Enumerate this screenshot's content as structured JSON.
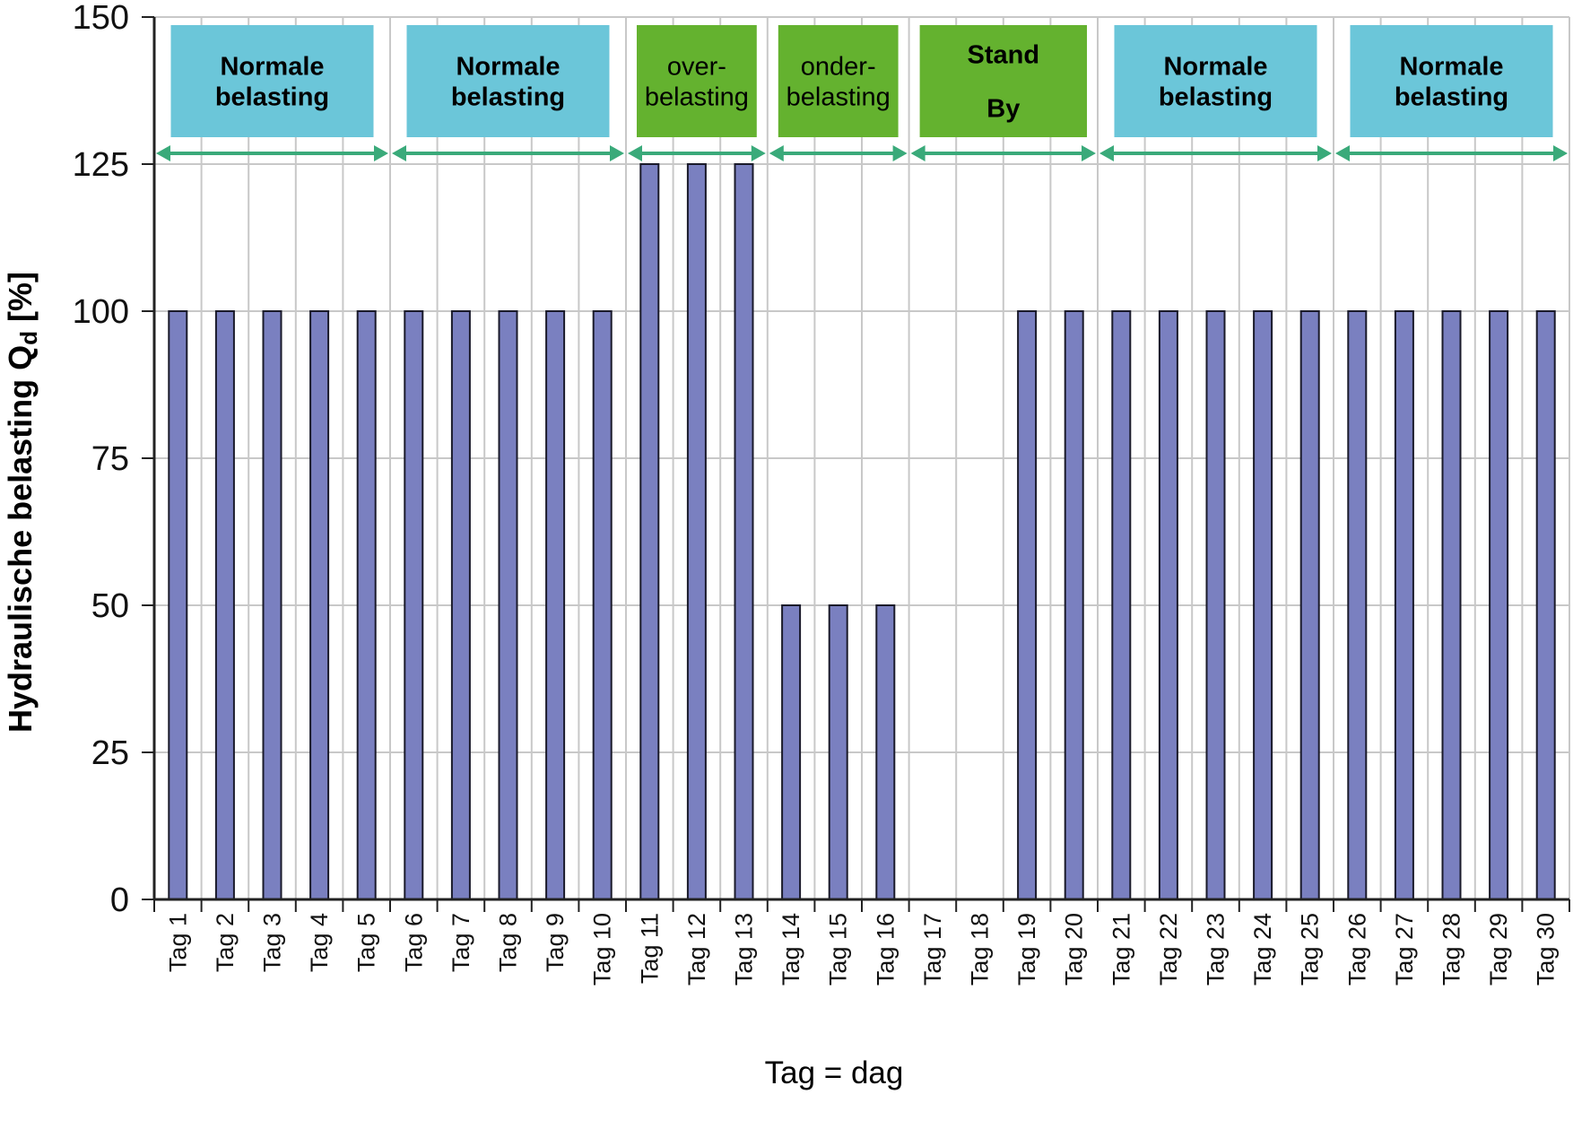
{
  "chart_data": {
    "type": "bar",
    "categories": [
      "Tag 1",
      "Tag 2",
      "Tag 3",
      "Tag 4",
      "Tag 5",
      "Tag 6",
      "Tag 7",
      "Tag 8",
      "Tag 9",
      "Tag 10",
      "Tag 11",
      "Tag 12",
      "Tag 13",
      "Tag 14",
      "Tag 15",
      "Tag 16",
      "Tag 17",
      "Tag 18",
      "Tag 19",
      "Tag 20",
      "Tag 21",
      "Tag 22",
      "Tag 23",
      "Tag 24",
      "Tag 25",
      "Tag 26",
      "Tag 27",
      "Tag 28",
      "Tag 29",
      "Tag 30"
    ],
    "values": [
      100,
      100,
      100,
      100,
      100,
      100,
      100,
      100,
      100,
      100,
      125,
      125,
      125,
      50,
      50,
      50,
      0,
      0,
      100,
      100,
      100,
      100,
      100,
      100,
      100,
      100,
      100,
      100,
      100,
      100
    ],
    "xlabel": "Tag = dag",
    "ylabel_main": "Hydraulische belasting Q",
    "ylabel_sub": "d",
    "ylabel_unit": " [%]",
    "ylim": [
      0,
      150
    ],
    "yticks": [
      0,
      25,
      50,
      75,
      100,
      125,
      150
    ],
    "grid": true,
    "bar_color": "#7a80c0",
    "phases": [
      {
        "lines": [
          "Normale",
          "belasting"
        ],
        "bold": true,
        "color": "#6bc6d9",
        "start_day": 1,
        "end_day": 5
      },
      {
        "lines": [
          "Normale",
          "belasting"
        ],
        "bold": true,
        "color": "#6bc6d9",
        "start_day": 6,
        "end_day": 10
      },
      {
        "lines": [
          "over-",
          "belasting"
        ],
        "bold": false,
        "color": "#64b22f",
        "start_day": 11,
        "end_day": 13
      },
      {
        "lines": [
          "onder-",
          "belasting"
        ],
        "bold": false,
        "color": "#64b22f",
        "start_day": 14,
        "end_day": 16
      },
      {
        "lines": [
          "Stand",
          "By"
        ],
        "bold": true,
        "color": "#64b22f",
        "start_day": 17,
        "end_day": 20
      },
      {
        "lines": [
          "Normale",
          "belasting"
        ],
        "bold": true,
        "color": "#6bc6d9",
        "start_day": 21,
        "end_day": 25
      },
      {
        "lines": [
          "Normale",
          "belasting"
        ],
        "bold": true,
        "color": "#6bc6d9",
        "start_day": 26,
        "end_day": 30
      }
    ],
    "arrow_color": "#3aaa7a"
  }
}
